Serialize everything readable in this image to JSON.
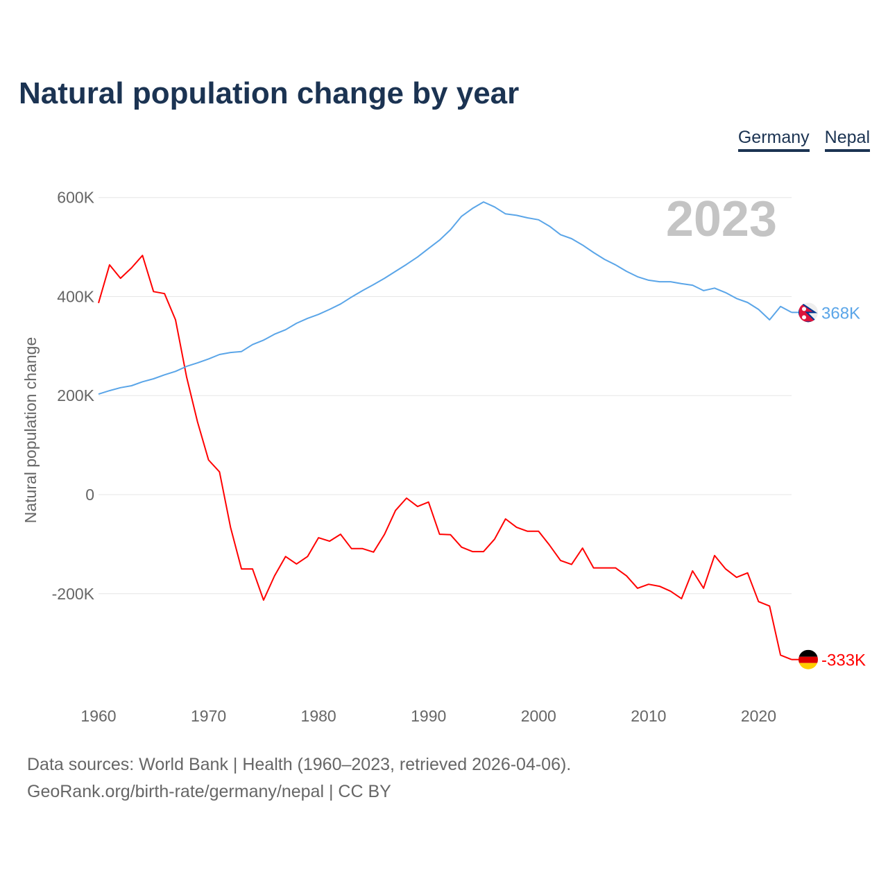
{
  "chart_data": {
    "type": "line",
    "title": "Natural population change by year",
    "xlabel": "",
    "ylabel": "Natural population change",
    "xlim": [
      1960,
      2023
    ],
    "ylim": [
      -380000,
      620000
    ],
    "yticks": [
      600000,
      400000,
      200000,
      0,
      -200000
    ],
    "ytick_labels": [
      "600K",
      "400K",
      "200K",
      "0",
      "-200K"
    ],
    "xticks": [
      1960,
      1970,
      1980,
      1990,
      2000,
      2010,
      2020
    ],
    "xtick_labels": [
      "1960",
      "1970",
      "1980",
      "1990",
      "2000",
      "2010",
      "2020"
    ],
    "grid": true,
    "year_label": "2023",
    "legend": [
      "Germany",
      "Nepal"
    ],
    "legend_placement": "top-right",
    "x_start": 1960,
    "series": [
      {
        "name": "Germany",
        "color": "#ff0000",
        "end_label": "-333K",
        "flag": "germany-flag",
        "values": [
          387,
          464,
          437,
          458,
          483,
          410,
          406,
          353,
          238,
          147,
          70,
          46,
          -66,
          -150,
          -150,
          -213,
          -164,
          -125,
          -140,
          -125,
          -87,
          -94,
          -80,
          -109,
          -109,
          -116,
          -80,
          -32,
          -7,
          -24,
          -15,
          -80,
          -81,
          -106,
          -115,
          -115,
          -90,
          -49,
          -66,
          -74,
          -74,
          -102,
          -133,
          -141,
          -108,
          -148,
          -148,
          -148,
          -164,
          -189,
          -181,
          -185,
          -195,
          -210,
          -154,
          -189,
          -123,
          -150,
          -167,
          -158,
          -216,
          -225,
          -324,
          -333
        ]
      },
      {
        "name": "Nepal",
        "color": "#5aa5e8",
        "end_label": "368K",
        "flag": "nepal-flag",
        "values": [
          203,
          210,
          216,
          220,
          228,
          234,
          242,
          249,
          259,
          266,
          274,
          283,
          287,
          289,
          303,
          312,
          324,
          333,
          346,
          356,
          364,
          374,
          385,
          399,
          412,
          424,
          437,
          451,
          465,
          480,
          497,
          514,
          535,
          562,
          578,
          591,
          581,
          567,
          564,
          559,
          555,
          542,
          525,
          517,
          504,
          489,
          475,
          464,
          451,
          440,
          433,
          430,
          430,
          426,
          423,
          412,
          417,
          408,
          396,
          388,
          374,
          353,
          380,
          368
        ]
      }
    ],
    "value_unit": "thousands"
  },
  "footer": {
    "line1": "Data sources: World Bank | Health (1960–2023, retrieved 2026-04-06).",
    "line2": "GeoRank.org/birth-rate/germany/nepal | CC BY"
  }
}
